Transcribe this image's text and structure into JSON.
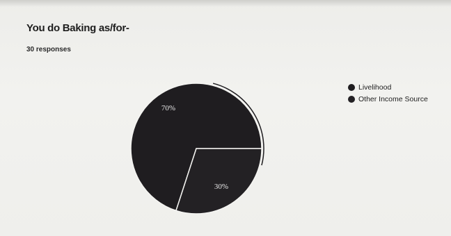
{
  "chart_data": {
    "type": "pie",
    "title": "You do Baking as/for-",
    "subtitle": "30 responses",
    "categories": [
      "Livelihood",
      "Other Income Source"
    ],
    "values": [
      70,
      30
    ],
    "data_labels": [
      "70%",
      "30%"
    ],
    "colors": [
      "#1f1d20",
      "#232124"
    ],
    "legend_position": "right"
  }
}
